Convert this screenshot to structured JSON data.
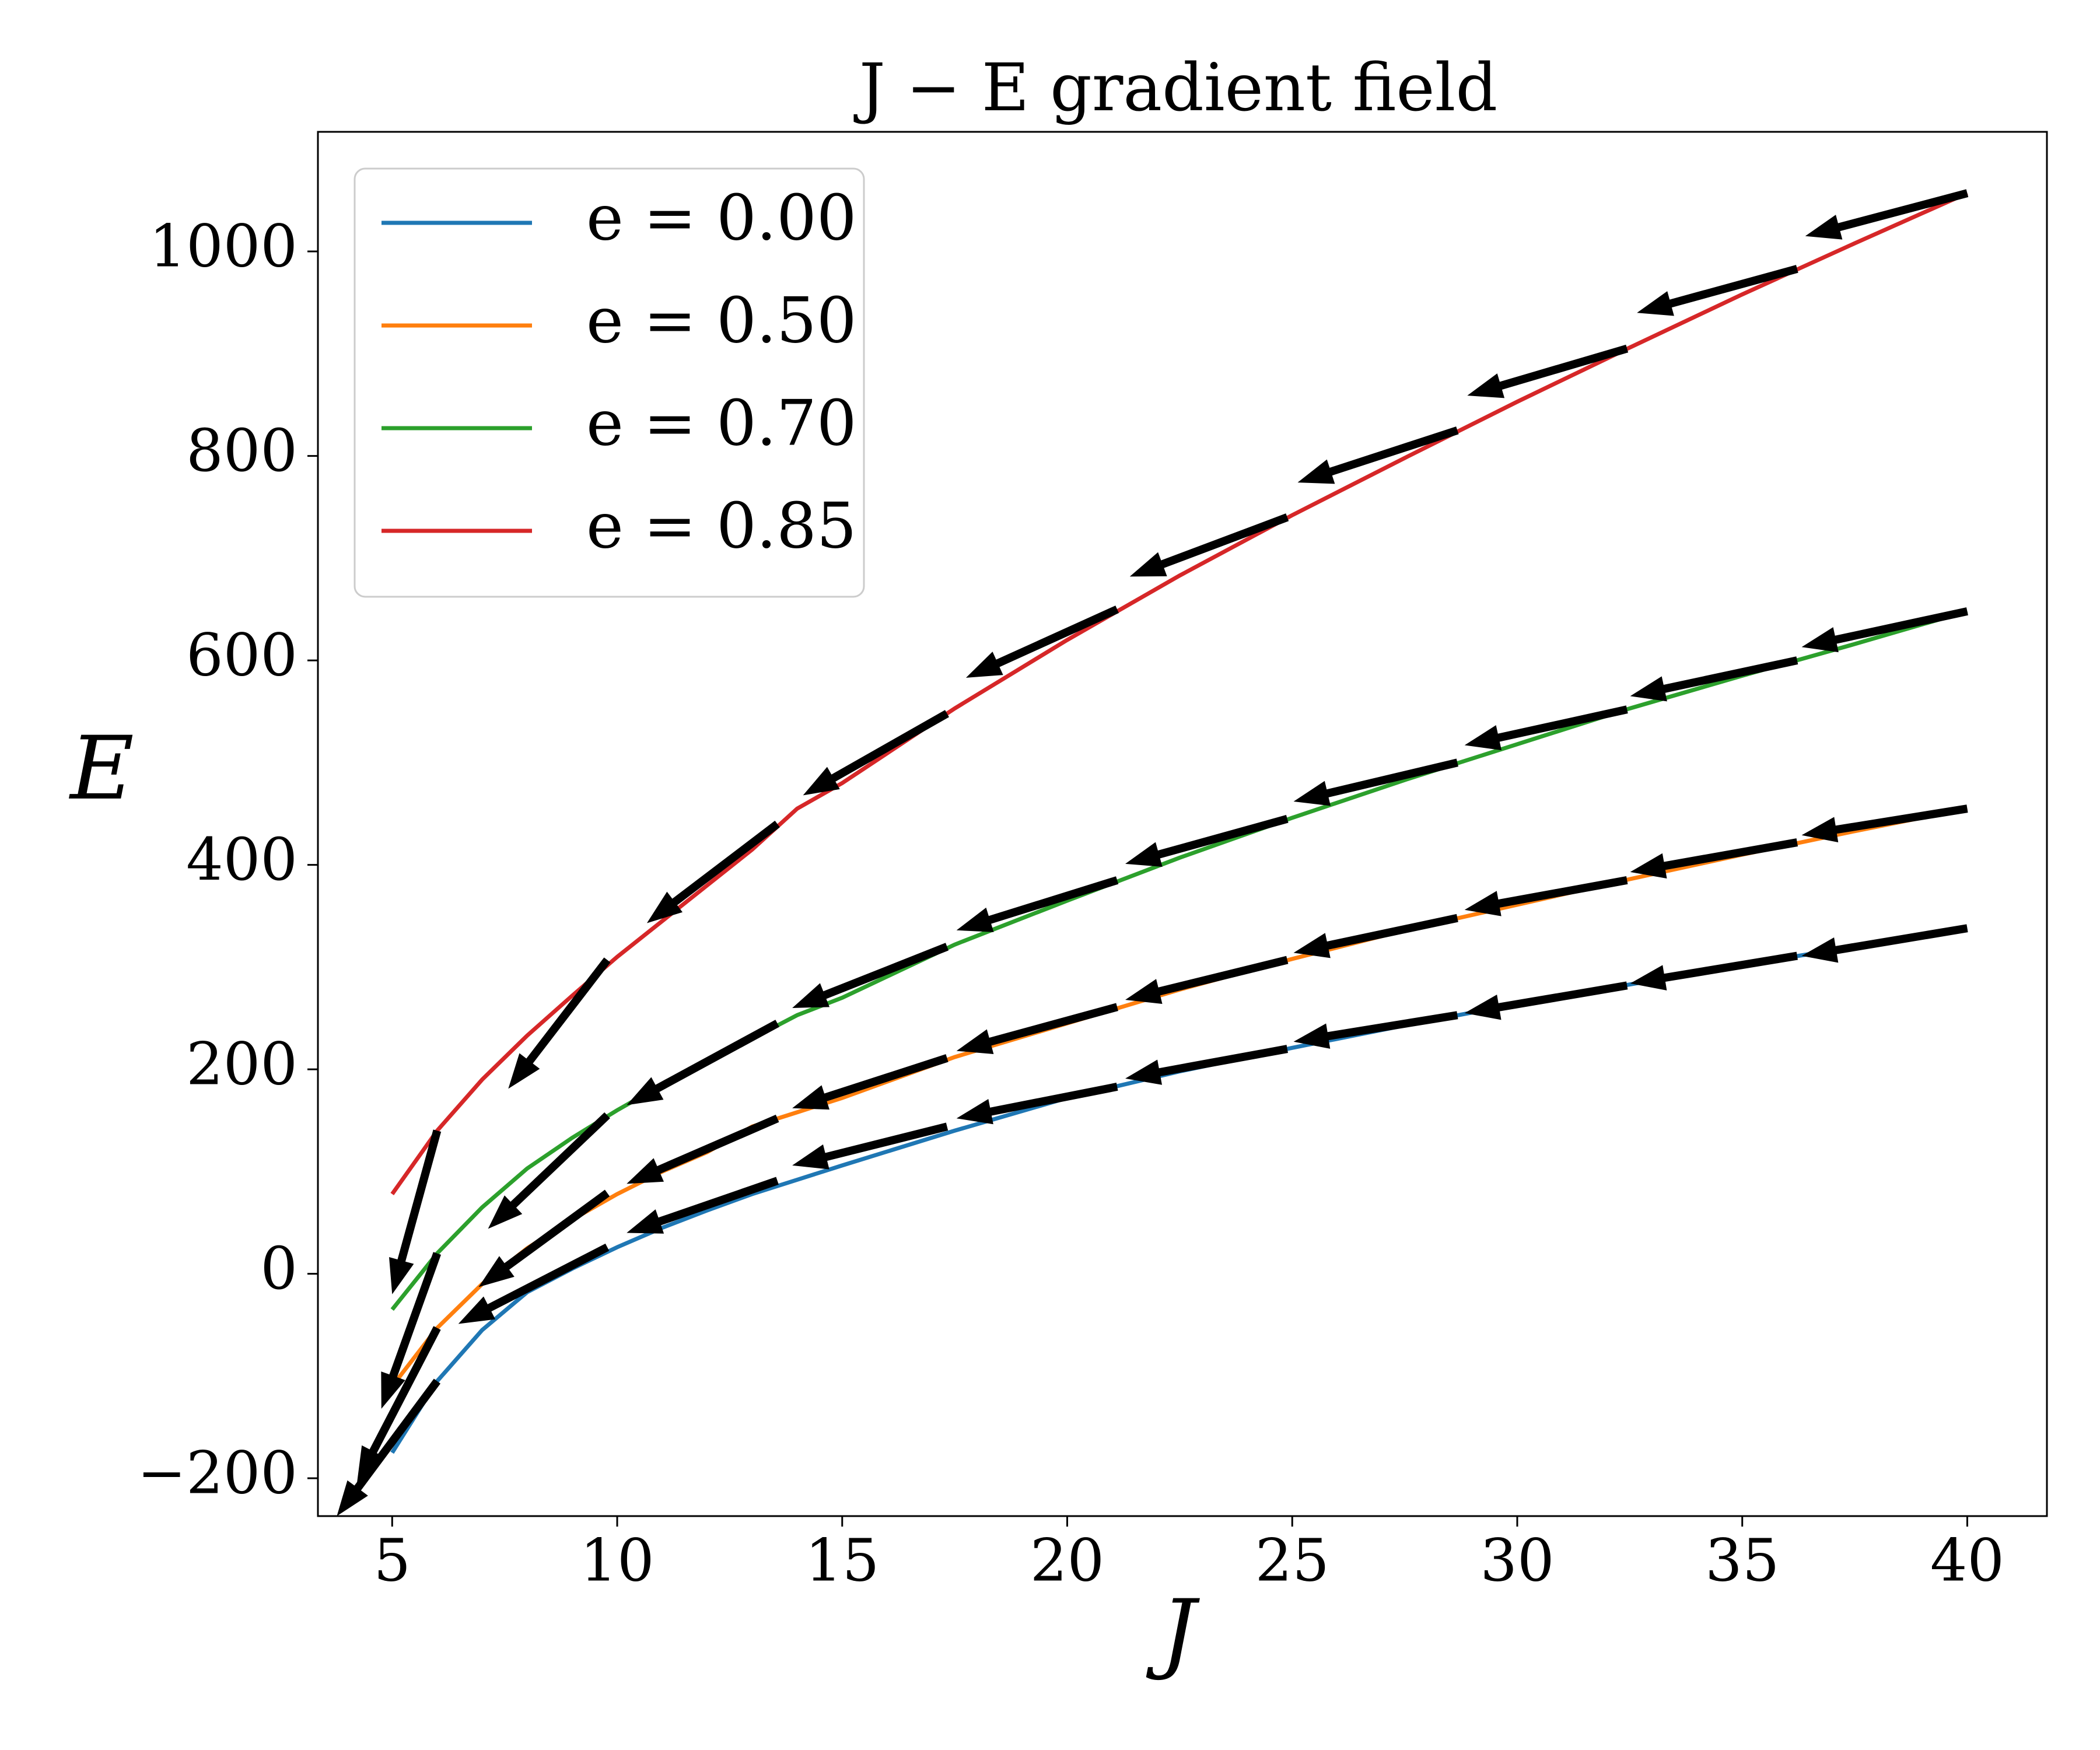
{
  "chart_data": {
    "type": "line",
    "title": "J − E gradient field",
    "x_label": "J",
    "y_label": "E",
    "xlim": [
      3.35,
      41.77
    ],
    "ylim": [
      -237,
      1117
    ],
    "xticks": [
      5,
      10,
      15,
      20,
      25,
      30,
      35,
      40
    ],
    "yticks": [
      {
        "value": -200,
        "label": "−200"
      },
      0,
      200,
      400,
      600,
      800,
      1000
    ],
    "legend_position": "upper left",
    "x": [
      5,
      6,
      7,
      8,
      9,
      10,
      11,
      12,
      13,
      14,
      15,
      17.5,
      20,
      22.5,
      25,
      27.5,
      30,
      32.5,
      35,
      37.5,
      40
    ],
    "series": [
      {
        "name": "e = 0.00",
        "color": "#1f77b4",
        "values": [
          -175,
          -105,
          -55,
          -18,
          5,
          26,
          45,
          62,
          78,
          92,
          106,
          140,
          172,
          198,
          221,
          243,
          264,
          283,
          302,
          320,
          338
        ]
      },
      {
        "name": "e = 0.50",
        "color": "#ff7f0e",
        "values": [
          -110,
          -53,
          -10,
          25,
          53,
          78,
          100,
          119,
          144,
          158,
          172,
          212,
          245,
          278,
          308,
          336,
          361,
          386,
          410,
          433,
          455
        ]
      },
      {
        "name": "e = 0.70",
        "color": "#2ca02c",
        "values": [
          -35,
          20,
          65,
          103,
          133,
          160,
          185,
          207,
          230,
          253,
          270,
          322,
          365,
          407,
          446,
          483,
          518,
          553,
          585,
          616,
          648
        ]
      },
      {
        "name": "e = 0.85",
        "color": "#d62728",
        "values": [
          78,
          140,
          190,
          233,
          272,
          310,
          345,
          380,
          415,
          455,
          480,
          553,
          620,
          683,
          742,
          798,
          853,
          906,
          958,
          1008,
          1057
        ]
      }
    ],
    "quiver": {
      "color": "#000000",
      "x": [
        6,
        9.78,
        13.56,
        17.33,
        21.11,
        24.89,
        28.67,
        32.44,
        36.22,
        40
      ],
      "series": [
        {
          "values": [
            -105,
            26,
            91,
            144,
            183,
            220,
            253,
            282,
            311,
            338
          ],
          "u": [
            -2.23,
            -3.31,
            -3.35,
            -3.44,
            -3.57,
            -3.6,
            -3.64,
            -3.61,
            -3.71,
            -3.68
          ],
          "v": [
            -132,
            -75,
            -51,
            -38,
            -31,
            -29,
            -26,
            -27,
            -27,
            -27
          ]
        },
        {
          "values": [
            -53,
            79,
            152,
            211,
            261,
            307,
            348,
            385,
            422,
            455
          ],
          "u": [
            -1.78,
            -2.86,
            -3.35,
            -3.44,
            -3.57,
            -3.6,
            -3.64,
            -3.61,
            -3.71,
            -3.68
          ],
          "v": [
            -151,
            -92,
            -64,
            -49,
            -43,
            -39,
            -34,
            -29,
            -29,
            -26
          ]
        },
        {
          "values": [
            20,
            155,
            245,
            320,
            385,
            445,
            500,
            552,
            600,
            648
          ],
          "u": [
            -1.24,
            -2.65,
            -3.35,
            -3.44,
            -3.57,
            -3.6,
            -3.64,
            -3.61,
            -3.71,
            -3.68
          ],
          "v": [
            -152,
            -111,
            -80,
            -60,
            -49,
            -44,
            -38,
            -35,
            -35,
            -35
          ]
        },
        {
          "values": [
            140,
            307,
            440,
            548,
            650,
            740,
            825,
            905,
            983,
            1057
          ],
          "u": [
            -1.0,
            -2.2,
            -2.9,
            -3.2,
            -3.36,
            -3.5,
            -3.55,
            -3.55,
            -3.56,
            -3.6
          ],
          "v": [
            -160,
            -126,
            -97,
            -80,
            -67,
            -58,
            -51,
            -46,
            -43,
            -42
          ]
        }
      ]
    }
  }
}
